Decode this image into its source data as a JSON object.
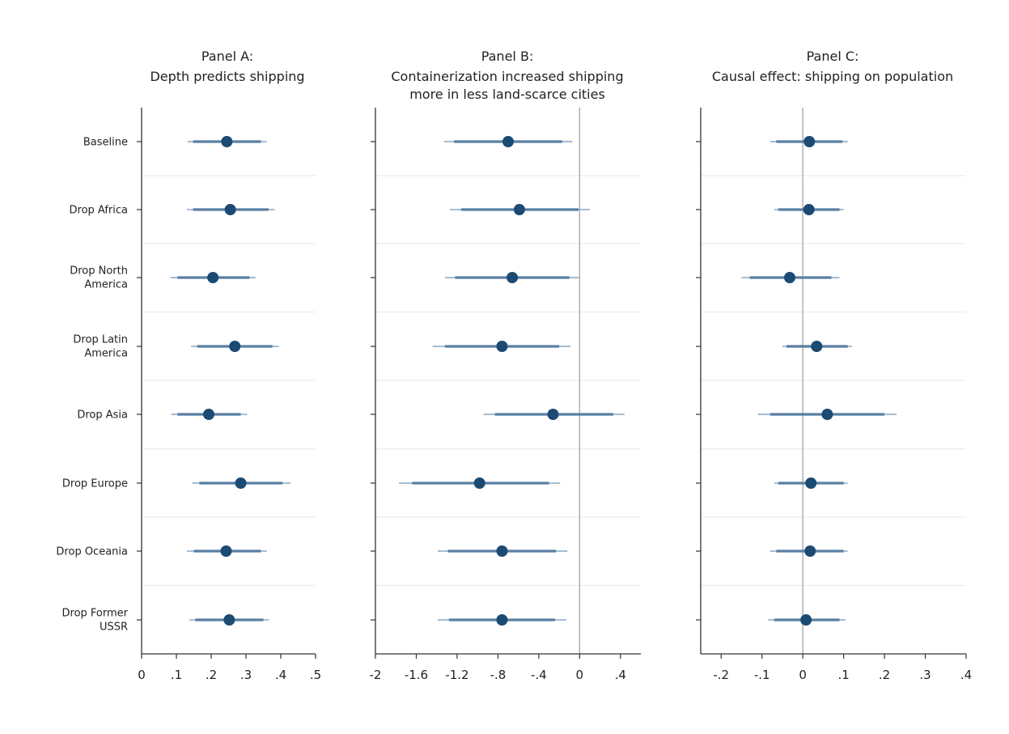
{
  "colors": {
    "marker": "#1b4a72",
    "ci90": "#5a7fa3",
    "ci95": "#8aa7c2",
    "axis": "#333333",
    "grid": "#eaf0f3",
    "zero_line": "#b0b0b0"
  },
  "chart_data": [
    {
      "type": "coefficient_plot",
      "title_line1": "Panel A:",
      "title_lines": [
        "Depth predicts shipping"
      ],
      "rows": [
        "Baseline",
        "Drop Africa",
        "Drop North America",
        "Drop Latin America",
        "Drop Asia",
        "Drop Europe",
        "Drop Oceania",
        "Drop Former USSR"
      ],
      "row_label_lines": [
        [
          "Baseline"
        ],
        [
          "Drop Africa"
        ],
        [
          "Drop North",
          "America"
        ],
        [
          "Drop Latin",
          "America"
        ],
        [
          "Drop Asia"
        ],
        [
          "Drop Europe"
        ],
        [
          "Drop Oceania"
        ],
        [
          "Drop Former",
          "USSR"
        ]
      ],
      "xlim": [
        0,
        0.5
      ],
      "xticks": [
        0,
        0.1,
        0.2,
        0.3,
        0.4,
        0.5
      ],
      "xtick_labels": [
        "0",
        ".1",
        ".2",
        ".3",
        ".4",
        ".5"
      ],
      "zero_line": false,
      "estimates": [
        0.245,
        0.255,
        0.205,
        0.268,
        0.193,
        0.285,
        0.243,
        0.252
      ],
      "ci90": [
        [
          0.148,
          0.343
        ],
        [
          0.148,
          0.365
        ],
        [
          0.103,
          0.31
        ],
        [
          0.16,
          0.376
        ],
        [
          0.103,
          0.285
        ],
        [
          0.166,
          0.405
        ],
        [
          0.15,
          0.343
        ],
        [
          0.154,
          0.35
        ]
      ],
      "ci95": [
        [
          0.132,
          0.36
        ],
        [
          0.13,
          0.383
        ],
        [
          0.083,
          0.328
        ],
        [
          0.142,
          0.394
        ],
        [
          0.085,
          0.303
        ],
        [
          0.146,
          0.428
        ],
        [
          0.13,
          0.36
        ],
        [
          0.138,
          0.366
        ]
      ]
    },
    {
      "type": "coefficient_plot",
      "title_line1": "Panel B:",
      "title_lines": [
        "Containerization increased shipping",
        "more in less land-scarce cities"
      ],
      "rows": [
        "Baseline",
        "Drop Africa",
        "Drop North America",
        "Drop Latin America",
        "Drop Asia",
        "Drop Europe",
        "Drop Oceania",
        "Drop Former USSR"
      ],
      "xlim": [
        -2,
        0.6
      ],
      "xticks": [
        -2,
        -1.6,
        -1.2,
        -0.8,
        -0.4,
        0,
        0.4
      ],
      "xtick_labels": [
        "-2",
        "-1.6",
        "-1.2",
        "-.8",
        "-.4",
        "0",
        ".4"
      ],
      "zero_line": true,
      "estimates": [
        -0.7,
        -0.59,
        -0.66,
        -0.76,
        -0.26,
        -0.98,
        -0.76,
        -0.76
      ],
      "ci90": [
        [
          -1.23,
          -0.17
        ],
        [
          -1.16,
          -0.01
        ],
        [
          -1.22,
          -0.1
        ],
        [
          -1.32,
          -0.2
        ],
        [
          -0.83,
          0.33
        ],
        [
          -1.64,
          -0.3
        ],
        [
          -1.29,
          -0.23
        ],
        [
          -1.28,
          -0.24
        ]
      ],
      "ci95": [
        [
          -1.33,
          -0.07
        ],
        [
          -1.27,
          0.1
        ],
        [
          -1.32,
          0.0
        ],
        [
          -1.44,
          -0.09
        ],
        [
          -0.94,
          0.44
        ],
        [
          -1.77,
          -0.19
        ],
        [
          -1.39,
          -0.12
        ],
        [
          -1.39,
          -0.13
        ]
      ]
    },
    {
      "type": "coefficient_plot",
      "title_line1": "Panel C:",
      "title_lines": [
        "Causal effect: shipping on population"
      ],
      "rows": [
        "Baseline",
        "Drop Africa",
        "Drop North America",
        "Drop Latin America",
        "Drop Asia",
        "Drop Europe",
        "Drop Oceania",
        "Drop Former USSR"
      ],
      "xlim": [
        -0.25,
        0.4
      ],
      "xticks": [
        -0.2,
        -0.1,
        0,
        0.1,
        0.2,
        0.3,
        0.4
      ],
      "xtick_labels": [
        "-.2",
        "-.1",
        "0",
        ".1",
        ".2",
        ".3",
        ".4"
      ],
      "zero_line": true,
      "estimates": [
        0.016,
        0.015,
        -0.032,
        0.034,
        0.06,
        0.02,
        0.018,
        0.008
      ],
      "ci90": [
        [
          -0.065,
          0.097
        ],
        [
          -0.06,
          0.09
        ],
        [
          -0.13,
          0.07
        ],
        [
          -0.04,
          0.11
        ],
        [
          -0.08,
          0.2
        ],
        [
          -0.06,
          0.1
        ],
        [
          -0.065,
          0.1
        ],
        [
          -0.07,
          0.09
        ]
      ],
      "ci95": [
        [
          -0.08,
          0.11
        ],
        [
          -0.07,
          0.1
        ],
        [
          -0.15,
          0.09
        ],
        [
          -0.05,
          0.12
        ],
        [
          -0.11,
          0.23
        ],
        [
          -0.07,
          0.11
        ],
        [
          -0.08,
          0.11
        ],
        [
          -0.085,
          0.105
        ]
      ]
    }
  ]
}
